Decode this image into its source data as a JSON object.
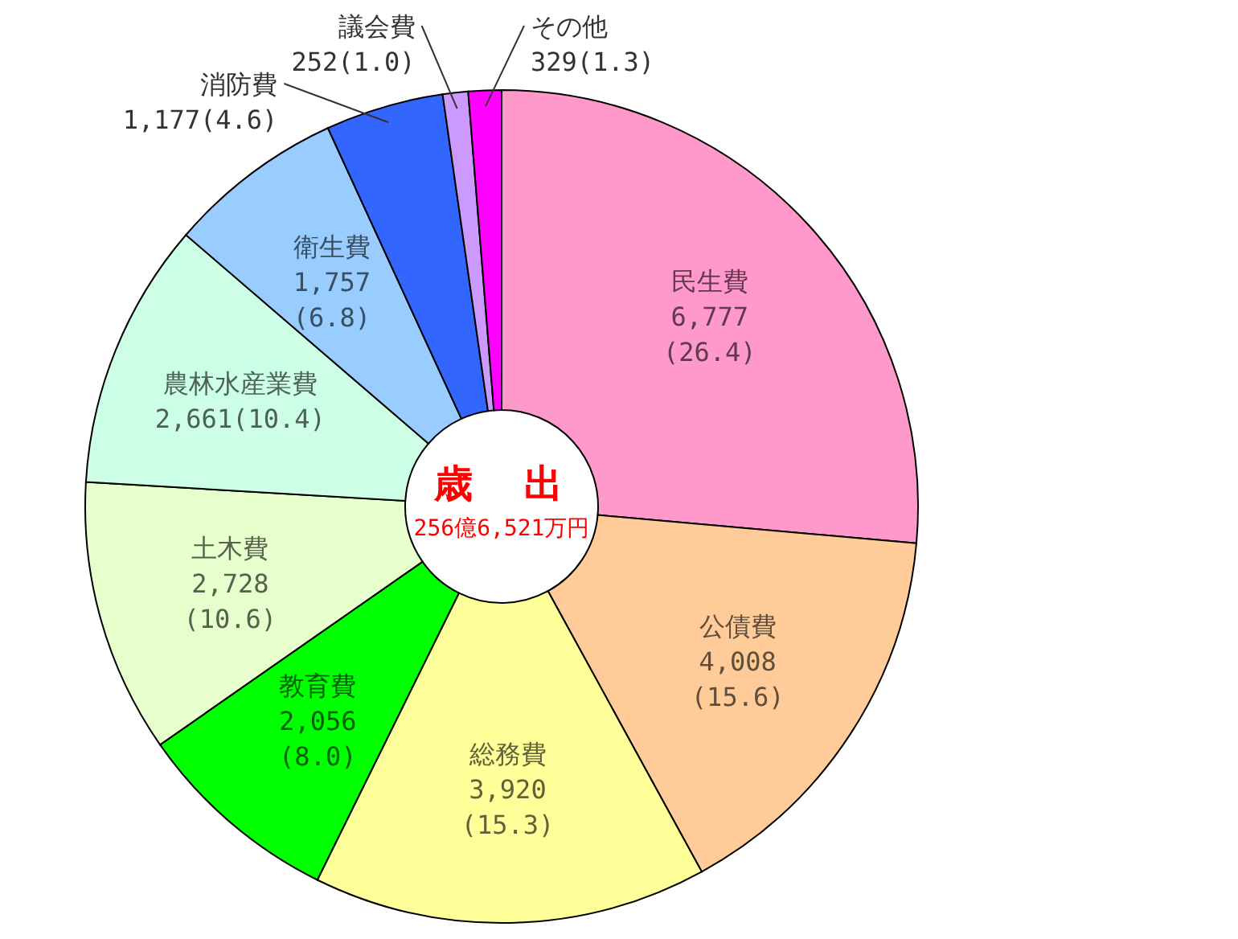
{
  "chart_data": {
    "type": "donut",
    "title": "歳　出",
    "subtitle": "256億6,521万円",
    "categories": [
      "民生費",
      "公債費",
      "総務費",
      "教育費",
      "土木費",
      "農林水産業費",
      "衛生費",
      "消防費",
      "議会費",
      "その他"
    ],
    "values": [
      6777,
      4008,
      3920,
      2056,
      2728,
      2661,
      1757,
      1177,
      252,
      329
    ],
    "colors": [
      "#ff99cc",
      "#ffcc99",
      "#ffff99",
      "#00ff00",
      "#e6ffcc",
      "#ccffe6",
      "#99ccff",
      "#3366ff",
      "#cc99ff",
      "#ff00ff"
    ],
    "value_labels": [
      "6,777\n(26.4)",
      "4,008\n(15.6)",
      "3,920\n(15.3)",
      "2,056\n(8.0)",
      "2,728\n(10.6)",
      "2,661(10.4)",
      "1,757\n(6.8)",
      "1,177(4.6)",
      "252(1.0)",
      "329(1.3)"
    ]
  }
}
